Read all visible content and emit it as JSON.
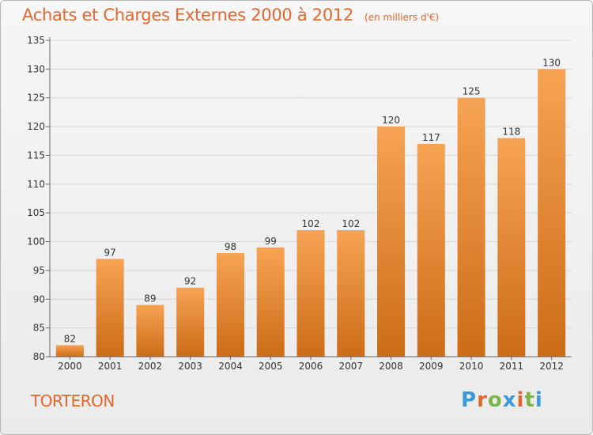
{
  "header": {
    "title": "Achats et Charges Externes 2000 à 2012",
    "unit": "(en milliers d'€)"
  },
  "commune": "TORTERON",
  "logo": {
    "text": "Proxiti",
    "letters": [
      {
        "ch": "P",
        "color": "#3a9ad9"
      },
      {
        "ch": "r",
        "color": "#e2672e"
      },
      {
        "ch": "o",
        "color": "#7ab648"
      },
      {
        "ch": "x",
        "color": "#3a9ad9"
      },
      {
        "ch": "i",
        "color": "#e2672e"
      },
      {
        "ch": "t",
        "color": "#7ab648"
      },
      {
        "ch": "i",
        "color": "#3a9ad9"
      }
    ]
  },
  "colors": {
    "accent": "#e2672e",
    "bar_top": "#f6a353",
    "bar_bottom": "#cc6c18"
  },
  "chart_data": {
    "type": "bar",
    "categories": [
      "2000",
      "2001",
      "2002",
      "2003",
      "2004",
      "2005",
      "2006",
      "2007",
      "2008",
      "2009",
      "2010",
      "2011",
      "2012"
    ],
    "values": [
      82,
      97,
      89,
      92,
      98,
      99,
      102,
      102,
      120,
      117,
      125,
      118,
      130
    ],
    "title": "Achats et Charges Externes 2000 à 2012",
    "xlabel": "",
    "ylabel": "",
    "ylim": [
      80,
      135
    ],
    "yticks": [
      80,
      85,
      90,
      95,
      100,
      105,
      110,
      115,
      120,
      125,
      130,
      135
    ],
    "grid": true,
    "legend": "none",
    "data_labels": true
  }
}
